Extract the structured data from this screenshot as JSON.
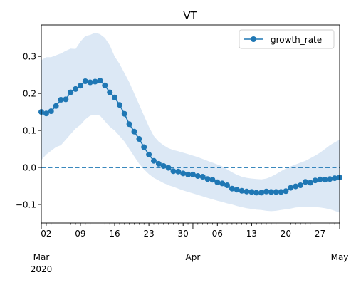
{
  "chart_data": {
    "type": "line",
    "title": "VT",
    "xlabel": "",
    "ylabel": "",
    "x_start": "2020-03-01",
    "x_end": "2020-05-01",
    "ylim": [
      -0.15,
      0.385
    ],
    "yticks": [
      "0.3",
      "0.2",
      "0.1",
      "0.0",
      "−0.1"
    ],
    "xticks_minor": [
      "02",
      "09",
      "16",
      "23",
      "30",
      "06",
      "13",
      "20",
      "27"
    ],
    "xticks_major": [
      {
        "label": "Mar",
        "sub": "2020"
      },
      {
        "label": "Apr",
        "sub": ""
      },
      {
        "label": "May",
        "sub": ""
      }
    ],
    "legend": {
      "position": "top-right",
      "entries": [
        "growth_rate"
      ]
    },
    "reference_line": {
      "y": 0.0,
      "style": "dashed"
    },
    "colors": {
      "series": "#1f77b4",
      "band": "#dce8f5",
      "axis": "#000000"
    },
    "series": [
      {
        "name": "growth_rate",
        "x": [
          "2020-03-01",
          "2020-03-02",
          "2020-03-03",
          "2020-03-04",
          "2020-03-05",
          "2020-03-06",
          "2020-03-07",
          "2020-03-08",
          "2020-03-09",
          "2020-03-10",
          "2020-03-11",
          "2020-03-12",
          "2020-03-13",
          "2020-03-14",
          "2020-03-15",
          "2020-03-16",
          "2020-03-17",
          "2020-03-18",
          "2020-03-19",
          "2020-03-20",
          "2020-03-21",
          "2020-03-22",
          "2020-03-23",
          "2020-03-24",
          "2020-03-25",
          "2020-03-26",
          "2020-03-27",
          "2020-03-28",
          "2020-03-29",
          "2020-03-30",
          "2020-03-31",
          "2020-04-01",
          "2020-04-02",
          "2020-04-03",
          "2020-04-04",
          "2020-04-05",
          "2020-04-06",
          "2020-04-07",
          "2020-04-08",
          "2020-04-09",
          "2020-04-10",
          "2020-04-11",
          "2020-04-12",
          "2020-04-13",
          "2020-04-14",
          "2020-04-15",
          "2020-04-16",
          "2020-04-17",
          "2020-04-18",
          "2020-04-19",
          "2020-04-20",
          "2020-04-21",
          "2020-04-22",
          "2020-04-23",
          "2020-04-24",
          "2020-04-25",
          "2020-04-26",
          "2020-04-27",
          "2020-04-28",
          "2020-04-29",
          "2020-04-30",
          "2020-05-01"
        ],
        "values": [
          0.15,
          0.146,
          0.152,
          0.166,
          0.183,
          0.184,
          0.203,
          0.212,
          0.221,
          0.233,
          0.23,
          0.232,
          0.235,
          0.222,
          0.203,
          0.189,
          0.169,
          0.145,
          0.117,
          0.097,
          0.077,
          0.055,
          0.035,
          0.018,
          0.01,
          0.004,
          -0.001,
          -0.01,
          -0.011,
          -0.016,
          -0.019,
          -0.019,
          -0.023,
          -0.025,
          -0.031,
          -0.033,
          -0.04,
          -0.043,
          -0.048,
          -0.057,
          -0.06,
          -0.063,
          -0.065,
          -0.066,
          -0.068,
          -0.068,
          -0.065,
          -0.066,
          -0.066,
          -0.066,
          -0.064,
          -0.055,
          -0.051,
          -0.048,
          -0.039,
          -0.041,
          -0.035,
          -0.032,
          -0.033,
          -0.031,
          -0.029,
          -0.027
        ],
        "lower": [
          0.02,
          0.035,
          0.045,
          0.055,
          0.06,
          0.075,
          0.09,
          0.105,
          0.115,
          0.13,
          0.14,
          0.142,
          0.14,
          0.125,
          0.11,
          0.1,
          0.085,
          0.07,
          0.05,
          0.03,
          0.01,
          -0.005,
          -0.018,
          -0.028,
          -0.035,
          -0.042,
          -0.048,
          -0.052,
          -0.057,
          -0.062,
          -0.066,
          -0.07,
          -0.074,
          -0.078,
          -0.082,
          -0.086,
          -0.09,
          -0.093,
          -0.097,
          -0.1,
          -0.104,
          -0.107,
          -0.11,
          -0.112,
          -0.114,
          -0.115,
          -0.117,
          -0.118,
          -0.117,
          -0.115,
          -0.113,
          -0.111,
          -0.108,
          -0.107,
          -0.106,
          -0.106,
          -0.107,
          -0.108,
          -0.11,
          -0.113,
          -0.117,
          -0.122
        ],
        "upper": [
          0.29,
          0.298,
          0.298,
          0.303,
          0.308,
          0.315,
          0.321,
          0.32,
          0.34,
          0.355,
          0.358,
          0.364,
          0.36,
          0.35,
          0.33,
          0.3,
          0.28,
          0.255,
          0.23,
          0.2,
          0.17,
          0.14,
          0.11,
          0.085,
          0.07,
          0.06,
          0.052,
          0.047,
          0.044,
          0.04,
          0.036,
          0.032,
          0.028,
          0.023,
          0.018,
          0.013,
          0.008,
          0.003,
          -0.005,
          -0.013,
          -0.02,
          -0.025,
          -0.028,
          -0.03,
          -0.031,
          -0.032,
          -0.03,
          -0.025,
          -0.018,
          -0.01,
          -0.003,
          0.003,
          0.008,
          0.013,
          0.018,
          0.025,
          0.032,
          0.04,
          0.05,
          0.06,
          0.068,
          0.075
        ]
      }
    ]
  }
}
